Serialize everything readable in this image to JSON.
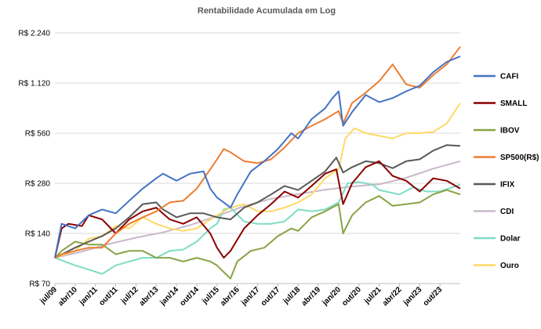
{
  "chart_data": {
    "type": "line",
    "title": "Rentabilidade Acumulada em Log",
    "y_scale": "log",
    "ylim": [
      70,
      2240
    ],
    "y_ticks": [
      70,
      140,
      280,
      560,
      1120,
      2240
    ],
    "y_tick_labels": [
      "R$ 70",
      "R$ 140",
      "R$ 280",
      "R$ 560",
      "R$ 1.120",
      "R$ 2.240"
    ],
    "xlim": [
      "2009-07",
      "2024-07"
    ],
    "x_ticks": [
      "2009-07",
      "2010-04",
      "2011-01",
      "2011-10",
      "2012-07",
      "2013-04",
      "2014-01",
      "2014-10",
      "2015-07",
      "2016-04",
      "2017-01",
      "2017-10",
      "2018-07",
      "2019-04",
      "2020-01",
      "2020-10",
      "2021-07",
      "2022-04",
      "2023-01",
      "2023-10"
    ],
    "x_tick_labels": [
      "jul/09",
      "abr/10",
      "jan/11",
      "out/11",
      "jul/12",
      "abr/13",
      "jan/14",
      "out/14",
      "jul/15",
      "abr/16",
      "jan/17",
      "out/17",
      "jul/18",
      "abr/19",
      "jan/20",
      "out/20",
      "jul/21",
      "abr/22",
      "jan/23",
      "out/23"
    ],
    "grid": "horizontal",
    "legend_position": "right",
    "series": [
      {
        "name": "CAFI",
        "color": "#4472C4",
        "points": [
          [
            "2009-07",
            100
          ],
          [
            "2009-10",
            160
          ],
          [
            "2010-04",
            150
          ],
          [
            "2010-10",
            180
          ],
          [
            "2011-04",
            195
          ],
          [
            "2011-10",
            185
          ],
          [
            "2012-04",
            220
          ],
          [
            "2012-10",
            260
          ],
          [
            "2013-04",
            300
          ],
          [
            "2013-07",
            320
          ],
          [
            "2014-01",
            290
          ],
          [
            "2014-07",
            320
          ],
          [
            "2015-01",
            330
          ],
          [
            "2015-04",
            260
          ],
          [
            "2015-07",
            230
          ],
          [
            "2015-10",
            215
          ],
          [
            "2016-01",
            200
          ],
          [
            "2016-04",
            240
          ],
          [
            "2016-10",
            330
          ],
          [
            "2017-04",
            380
          ],
          [
            "2017-10",
            450
          ],
          [
            "2018-04",
            560
          ],
          [
            "2018-07",
            520
          ],
          [
            "2019-01",
            680
          ],
          [
            "2019-07",
            790
          ],
          [
            "2019-10",
            900
          ],
          [
            "2020-01",
            1000
          ],
          [
            "2020-03",
            620
          ],
          [
            "2020-07",
            750
          ],
          [
            "2021-01",
            950
          ],
          [
            "2021-07",
            860
          ],
          [
            "2022-01",
            910
          ],
          [
            "2022-07",
            1000
          ],
          [
            "2023-01",
            1080
          ],
          [
            "2023-07",
            1300
          ],
          [
            "2024-01",
            1500
          ],
          [
            "2024-07",
            1620
          ]
        ]
      },
      {
        "name": "SMALL",
        "color": "#8B0000",
        "points": [
          [
            "2009-07",
            100
          ],
          [
            "2009-10",
            150
          ],
          [
            "2010-01",
            160
          ],
          [
            "2010-07",
            155
          ],
          [
            "2010-10",
            180
          ],
          [
            "2011-04",
            170
          ],
          [
            "2011-10",
            140
          ],
          [
            "2012-04",
            170
          ],
          [
            "2012-10",
            190
          ],
          [
            "2013-04",
            200
          ],
          [
            "2013-10",
            170
          ],
          [
            "2014-04",
            160
          ],
          [
            "2014-10",
            175
          ],
          [
            "2015-04",
            140
          ],
          [
            "2015-07",
            115
          ],
          [
            "2015-10",
            100
          ],
          [
            "2016-01",
            110
          ],
          [
            "2016-07",
            150
          ],
          [
            "2017-01",
            180
          ],
          [
            "2017-07",
            210
          ],
          [
            "2018-01",
            250
          ],
          [
            "2018-07",
            230
          ],
          [
            "2019-01",
            270
          ],
          [
            "2019-07",
            320
          ],
          [
            "2019-12",
            340
          ],
          [
            "2020-03",
            210
          ],
          [
            "2020-07",
            280
          ],
          [
            "2021-01",
            350
          ],
          [
            "2021-07",
            380
          ],
          [
            "2022-01",
            310
          ],
          [
            "2022-07",
            290
          ],
          [
            "2023-01",
            250
          ],
          [
            "2023-07",
            300
          ],
          [
            "2024-01",
            290
          ],
          [
            "2024-07",
            260
          ]
        ]
      },
      {
        "name": "IBOV",
        "color": "#8AA245",
        "points": [
          [
            "2009-07",
            100
          ],
          [
            "2009-10",
            110
          ],
          [
            "2010-04",
            125
          ],
          [
            "2010-10",
            120
          ],
          [
            "2011-04",
            120
          ],
          [
            "2011-10",
            105
          ],
          [
            "2012-04",
            110
          ],
          [
            "2012-10",
            110
          ],
          [
            "2013-04",
            100
          ],
          [
            "2013-10",
            100
          ],
          [
            "2014-04",
            95
          ],
          [
            "2014-10",
            100
          ],
          [
            "2015-04",
            95
          ],
          [
            "2015-07",
            90
          ],
          [
            "2015-10",
            82
          ],
          [
            "2016-01",
            75
          ],
          [
            "2016-04",
            95
          ],
          [
            "2016-10",
            110
          ],
          [
            "2017-04",
            115
          ],
          [
            "2017-10",
            135
          ],
          [
            "2018-04",
            150
          ],
          [
            "2018-07",
            145
          ],
          [
            "2019-01",
            175
          ],
          [
            "2019-07",
            190
          ],
          [
            "2020-01",
            210
          ],
          [
            "2020-03",
            140
          ],
          [
            "2020-07",
            180
          ],
          [
            "2021-01",
            215
          ],
          [
            "2021-07",
            235
          ],
          [
            "2022-01",
            205
          ],
          [
            "2022-07",
            210
          ],
          [
            "2023-01",
            215
          ],
          [
            "2023-07",
            240
          ],
          [
            "2024-01",
            255
          ],
          [
            "2024-07",
            240
          ]
        ]
      },
      {
        "name": "SP500(R$)",
        "color": "#ED7D31",
        "points": [
          [
            "2009-07",
            100
          ],
          [
            "2009-10",
            105
          ],
          [
            "2010-04",
            110
          ],
          [
            "2010-10",
            115
          ],
          [
            "2011-04",
            115
          ],
          [
            "2011-10",
            140
          ],
          [
            "2012-04",
            160
          ],
          [
            "2012-10",
            175
          ],
          [
            "2013-04",
            190
          ],
          [
            "2013-10",
            215
          ],
          [
            "2014-04",
            220
          ],
          [
            "2014-10",
            260
          ],
          [
            "2015-04",
            340
          ],
          [
            "2015-07",
            390
          ],
          [
            "2015-10",
            450
          ],
          [
            "2016-01",
            430
          ],
          [
            "2016-07",
            380
          ],
          [
            "2017-01",
            370
          ],
          [
            "2017-07",
            390
          ],
          [
            "2018-01",
            460
          ],
          [
            "2018-07",
            560
          ],
          [
            "2019-01",
            620
          ],
          [
            "2019-07",
            680
          ],
          [
            "2020-01",
            760
          ],
          [
            "2020-03",
            640
          ],
          [
            "2020-07",
            850
          ],
          [
            "2021-01",
            980
          ],
          [
            "2021-07",
            1150
          ],
          [
            "2022-01",
            1450
          ],
          [
            "2022-07",
            1100
          ],
          [
            "2023-01",
            1050
          ],
          [
            "2023-07",
            1250
          ],
          [
            "2024-01",
            1450
          ],
          [
            "2024-07",
            1850
          ]
        ]
      },
      {
        "name": "IFIX",
        "color": "#595959",
        "points": [
          [
            "2009-07",
            100
          ],
          [
            "2010-04",
            115
          ],
          [
            "2010-10",
            125
          ],
          [
            "2011-04",
            135
          ],
          [
            "2011-10",
            150
          ],
          [
            "2012-04",
            175
          ],
          [
            "2012-10",
            210
          ],
          [
            "2013-04",
            215
          ],
          [
            "2013-07",
            195
          ],
          [
            "2014-01",
            175
          ],
          [
            "2014-07",
            185
          ],
          [
            "2015-01",
            185
          ],
          [
            "2015-07",
            175
          ],
          [
            "2016-01",
            170
          ],
          [
            "2016-07",
            200
          ],
          [
            "2017-01",
            215
          ],
          [
            "2017-07",
            240
          ],
          [
            "2018-01",
            270
          ],
          [
            "2018-07",
            255
          ],
          [
            "2019-01",
            290
          ],
          [
            "2019-07",
            330
          ],
          [
            "2019-12",
            400
          ],
          [
            "2020-03",
            325
          ],
          [
            "2020-07",
            350
          ],
          [
            "2021-01",
            380
          ],
          [
            "2021-07",
            370
          ],
          [
            "2022-01",
            345
          ],
          [
            "2022-07",
            380
          ],
          [
            "2023-01",
            390
          ],
          [
            "2023-07",
            440
          ],
          [
            "2024-01",
            475
          ],
          [
            "2024-07",
            470
          ]
        ]
      },
      {
        "name": "CDI",
        "color": "#C9B8C9",
        "points": [
          [
            "2009-07",
            100
          ],
          [
            "2010-07",
            109
          ],
          [
            "2011-07",
            121
          ],
          [
            "2012-07",
            132
          ],
          [
            "2013-07",
            142
          ],
          [
            "2014-07",
            157
          ],
          [
            "2015-07",
            178
          ],
          [
            "2016-07",
            204
          ],
          [
            "2017-07",
            226
          ],
          [
            "2018-07",
            241
          ],
          [
            "2019-07",
            256
          ],
          [
            "2020-07",
            268
          ],
          [
            "2021-07",
            276
          ],
          [
            "2022-07",
            302
          ],
          [
            "2023-07",
            343
          ],
          [
            "2024-07",
            380
          ]
        ]
      },
      {
        "name": "Dolar",
        "color": "#7EDCC3",
        "points": [
          [
            "2009-07",
            100
          ],
          [
            "2010-04",
            90
          ],
          [
            "2010-10",
            85
          ],
          [
            "2011-04",
            80
          ],
          [
            "2011-10",
            90
          ],
          [
            "2012-04",
            95
          ],
          [
            "2012-10",
            100
          ],
          [
            "2013-04",
            100
          ],
          [
            "2013-10",
            110
          ],
          [
            "2014-04",
            112
          ],
          [
            "2014-10",
            125
          ],
          [
            "2015-04",
            150
          ],
          [
            "2015-07",
            160
          ],
          [
            "2015-10",
            195
          ],
          [
            "2016-01",
            200
          ],
          [
            "2016-07",
            165
          ],
          [
            "2017-01",
            160
          ],
          [
            "2017-07",
            160
          ],
          [
            "2018-01",
            165
          ],
          [
            "2018-07",
            195
          ],
          [
            "2019-01",
            190
          ],
          [
            "2019-07",
            195
          ],
          [
            "2020-01",
            215
          ],
          [
            "2020-05",
            280
          ],
          [
            "2020-10",
            285
          ],
          [
            "2021-04",
            275
          ],
          [
            "2021-07",
            255
          ],
          [
            "2022-04",
            240
          ],
          [
            "2022-10",
            265
          ],
          [
            "2023-04",
            250
          ],
          [
            "2023-10",
            250
          ],
          [
            "2024-07",
            275
          ]
        ]
      },
      {
        "name": "Ouro",
        "color": "#FFD966",
        "points": [
          [
            "2009-07",
            100
          ],
          [
            "2010-04",
            110
          ],
          [
            "2010-10",
            130
          ],
          [
            "2011-04",
            135
          ],
          [
            "2011-10",
            155
          ],
          [
            "2012-04",
            150
          ],
          [
            "2012-10",
            175
          ],
          [
            "2013-04",
            160
          ],
          [
            "2013-10",
            150
          ],
          [
            "2014-04",
            145
          ],
          [
            "2014-10",
            150
          ],
          [
            "2015-04",
            170
          ],
          [
            "2015-10",
            190
          ],
          [
            "2016-01",
            200
          ],
          [
            "2016-07",
            210
          ],
          [
            "2017-01",
            190
          ],
          [
            "2017-07",
            190
          ],
          [
            "2018-01",
            200
          ],
          [
            "2018-07",
            215
          ],
          [
            "2019-01",
            240
          ],
          [
            "2019-07",
            300
          ],
          [
            "2020-01",
            340
          ],
          [
            "2020-04",
            520
          ],
          [
            "2020-08",
            600
          ],
          [
            "2021-01",
            560
          ],
          [
            "2021-07",
            540
          ],
          [
            "2022-01",
            520
          ],
          [
            "2022-07",
            560
          ],
          [
            "2023-01",
            560
          ],
          [
            "2023-07",
            570
          ],
          [
            "2024-01",
            640
          ],
          [
            "2024-07",
            850
          ]
        ]
      }
    ]
  }
}
